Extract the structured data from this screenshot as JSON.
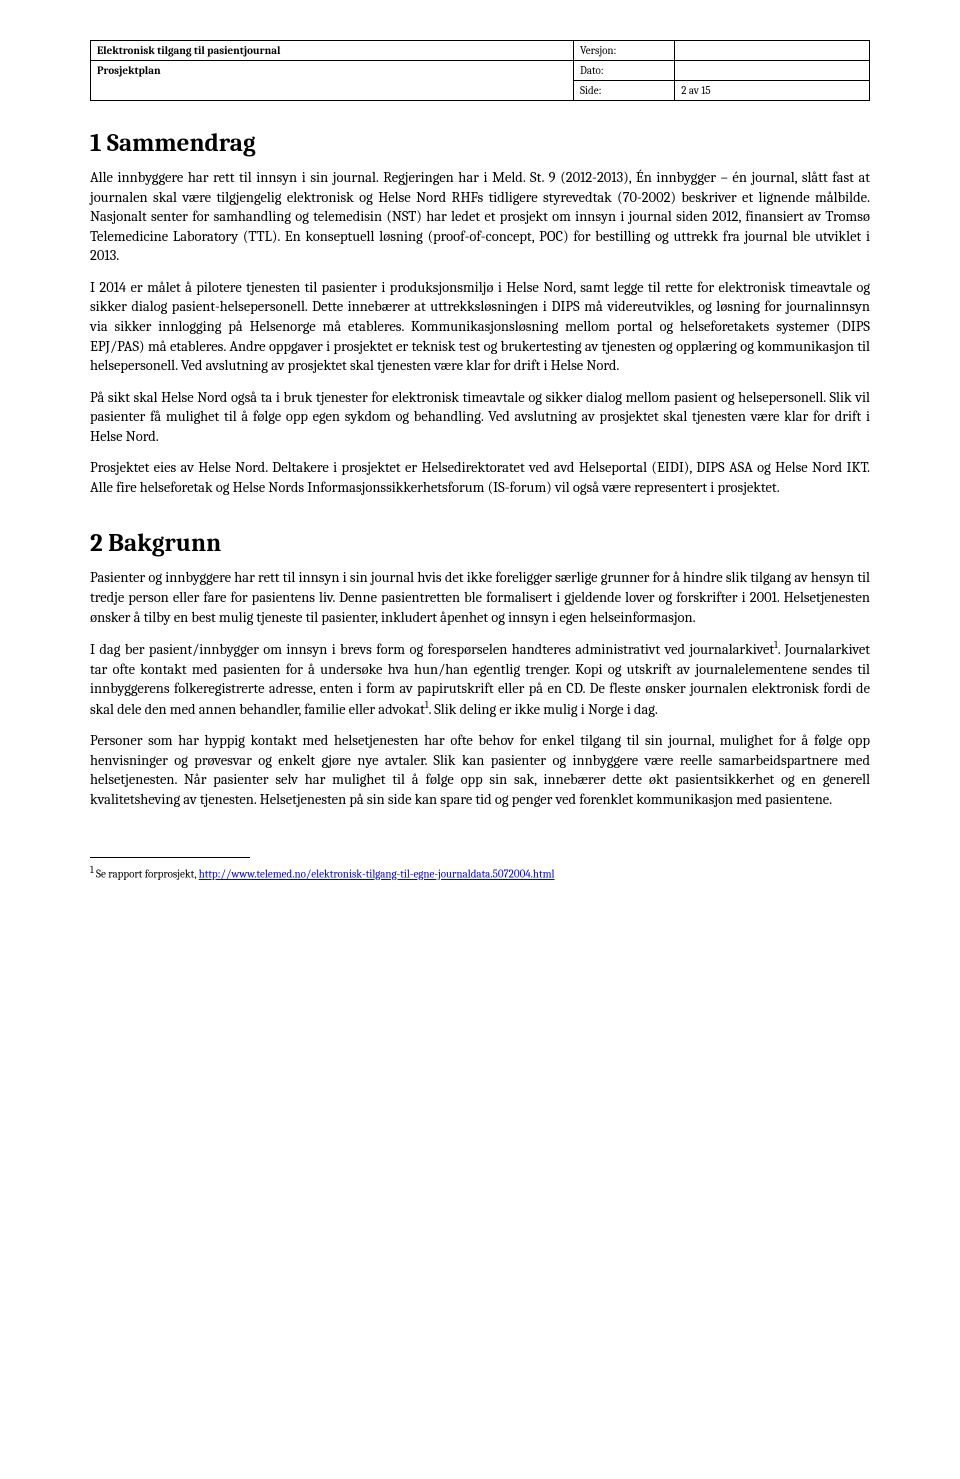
{
  "header": {
    "doc_title": "Elektronisk tilgang til pasientjournal",
    "doc_subtitle": "Prosjektplan",
    "version_label": "Versjon:",
    "version_value": "",
    "date_label": "Dato:",
    "date_value": "",
    "page_label": "Side:",
    "page_value": "2 av 15"
  },
  "section1": {
    "heading": "1   Sammendrag",
    "p1": "Alle innbyggere har rett til innsyn i sin journal. Regjeringen har i Meld. St. 9 (2012-2013), Én innbygger – én journal, slått fast at journalen skal være tilgjengelig elektronisk og Helse Nord RHFs tidligere styrevedtak (70-2002) beskriver et lignende målbilde. Nasjonalt senter for samhandling og telemedisin (NST) har ledet et prosjekt om innsyn i journal siden 2012, finansiert av Tromsø Telemedicine Laboratory (TTL). En konseptuell løsning (proof-of-concept, POC) for bestilling og uttrekk fra journal ble utviklet i 2013.",
    "p2": "I 2014 er målet å pilotere tjenesten til pasienter i produksjonsmiljø i Helse Nord, samt legge til rette for elektronisk timeavtale og sikker dialog pasient-helsepersonell. Dette innebærer at uttrekksløsningen i DIPS må videreutvikles, og løsning for journalinnsyn via sikker innlogging på Helsenorge må etableres. Kommunikasjonsløsning mellom portal og helseforetakets systemer (DIPS EPJ/PAS) må etableres. Andre oppgaver i prosjektet er teknisk test og brukertesting av tjenesten og opplæring og kommunikasjon til helsepersonell. Ved avslutning av prosjektet skal tjenesten være klar for drift i Helse Nord.",
    "p3": "På sikt skal Helse Nord også ta i bruk tjenester for elektronisk timeavtale og sikker dialog mellom pasient og helsepersonell. Slik vil pasienter få mulighet til å følge opp egen sykdom og behandling. Ved avslutning av prosjektet skal tjenesten være klar for drift i Helse Nord.",
    "p4": "Prosjektet eies av Helse Nord. Deltakere i prosjektet er Helsedirektoratet ved avd Helseportal (EIDI), DIPS ASA og Helse Nord IKT. Alle fire helseforetak og Helse Nords Informasjonssikkerhetsforum (IS-forum) vil også være representert i prosjektet."
  },
  "section2": {
    "heading": "2   Bakgrunn",
    "p1_a": "Pasienter og innbyggere har rett til innsyn i sin journal hvis det ikke foreligger særlige grunner for å hindre slik tilgang av hensyn til tredje person eller fare for pasientens liv. Denne pasientretten ble formalisert i gjeldende lover og forskrifter i 2001. Helsetjenesten ønsker å tilby en best mulig tjeneste til pasienter, inkludert åpenhet og innsyn i egen helseinformasjon.",
    "p2_a": "I dag ber pasient/innbygger om innsyn i brevs form og forespørselen handteres administrativt ved journalarkivet",
    "p2_b": ". Journalarkivet tar ofte kontakt med pasienten for å undersøke hva hun/han egentlig trenger.  Kopi og utskrift av journalelementene sendes til innbyggerens folkeregistrerte adresse, enten i form av papirutskrift eller på en CD. De fleste ønsker journalen elektronisk fordi de skal dele den med annen behandler, familie eller advokat",
    "p2_c": ". Slik deling er ikke mulig i Norge i dag.",
    "p3": "Personer som har hyppig kontakt med helsetjenesten har ofte behov for enkel tilgang til sin journal, mulighet for å følge opp henvisninger og prøvesvar og enkelt gjøre nye avtaler. Slik kan pasienter og innbyggere være reelle samarbeidspartnere med helsetjenesten. Når pasienter selv har mulighet til å følge opp sin sak, innebærer dette økt pasientsikkerhet og en generell kvalitetsheving av tjenesten. Helsetjenesten på sin side kan spare tid og penger ved forenklet kommunikasjon med pasientene."
  },
  "footnote": {
    "marker": "1",
    "text_a": " Se rapport forprosjekt, ",
    "link_text": "http://www.telemed.no/elektronisk-tilgang-til-egne-journaldata.5072004.html",
    "link_href": "http://www.telemed.no/elektronisk-tilgang-til-egne-journaldata.5072004.html"
  },
  "style": {
    "body_font_size": 14.5,
    "heading_font_size": 25,
    "header_font_size": 11,
    "footnote_font_size": 11,
    "text_color": "#000000",
    "background_color": "#ffffff",
    "link_color": "#0000ee"
  }
}
